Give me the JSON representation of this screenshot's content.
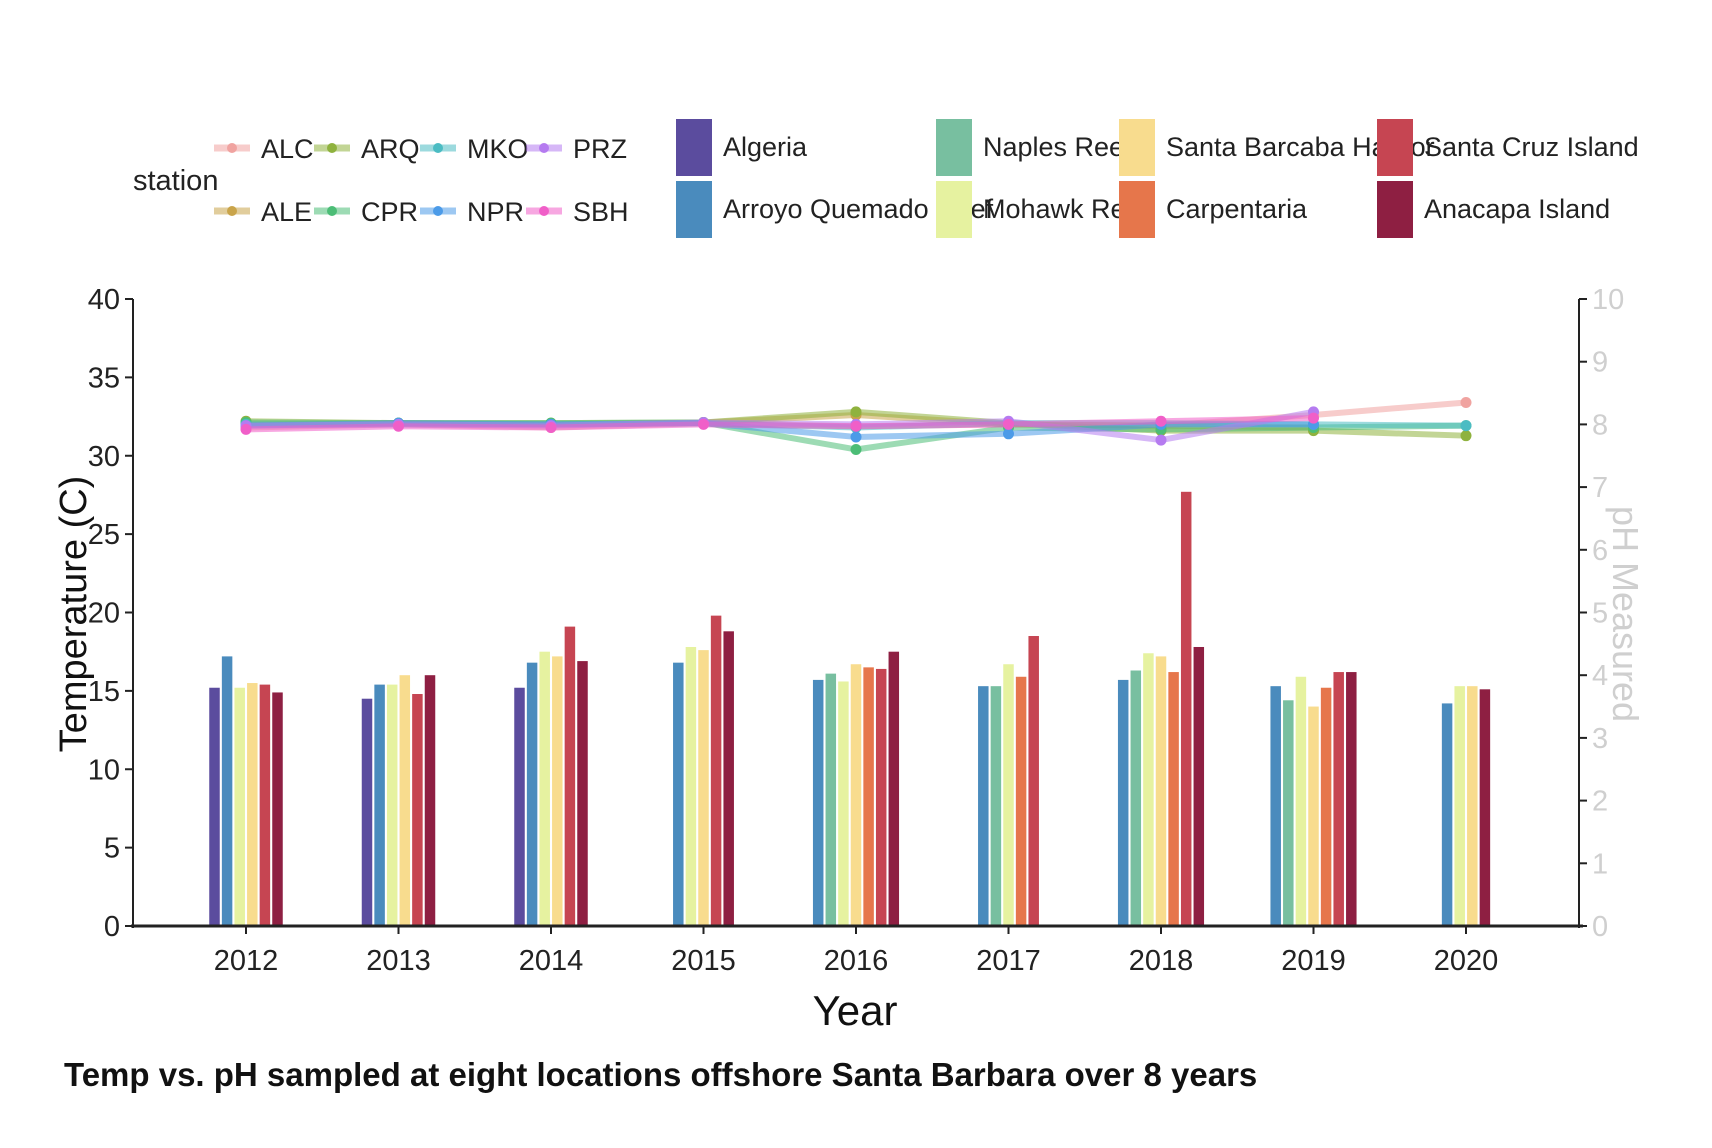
{
  "chart_data": {
    "type": "bar+line",
    "caption": "Temp vs. pH sampled at eight locations offshore Santa Barbara over 8 years",
    "xlabel": "Year",
    "ylabel_left": "Temperature (C)",
    "ylabel_right": "pH Measured",
    "ylim_left": [
      0,
      40
    ],
    "ylim_right": [
      0,
      10
    ],
    "yticks_left": [
      0,
      5,
      10,
      15,
      20,
      25,
      30,
      35,
      40
    ],
    "yticks_right": [
      0,
      1,
      2,
      3,
      4,
      5,
      6,
      7,
      8,
      9,
      10
    ],
    "grid": false,
    "legend_position": "top",
    "categories": [
      "2012",
      "2013",
      "2014",
      "2015",
      "2016",
      "2017",
      "2018",
      "2019",
      "2020"
    ],
    "bar_series": [
      {
        "name": "Algeria",
        "color": "#5b4c9e",
        "values": [
          15.2,
          14.5,
          15.2,
          null,
          null,
          null,
          null,
          null,
          null
        ]
      },
      {
        "name": "Arroyo Quemado Reef",
        "color": "#4a8bbd",
        "values": [
          17.2,
          15.4,
          16.8,
          16.8,
          15.7,
          15.3,
          15.7,
          15.3,
          14.2
        ]
      },
      {
        "name": "Naples Reef",
        "color": "#78bfa0",
        "values": [
          null,
          null,
          null,
          null,
          16.1,
          15.3,
          16.3,
          14.4,
          null
        ]
      },
      {
        "name": "Mohawk Reef",
        "color": "#e6f2a0",
        "values": [
          15.2,
          15.4,
          17.5,
          17.8,
          15.6,
          16.7,
          17.4,
          15.9,
          15.3
        ]
      },
      {
        "name": "Santa Barcaba Harbor",
        "color": "#f8dc8e",
        "values": [
          15.5,
          16.0,
          17.2,
          17.6,
          16.7,
          null,
          17.2,
          14.0,
          15.3
        ]
      },
      {
        "name": "Carpentaria",
        "color": "#e6764b",
        "values": [
          null,
          null,
          null,
          null,
          16.5,
          15.9,
          16.2,
          15.2,
          null
        ]
      },
      {
        "name": "Santa Cruz Island",
        "color": "#c64552",
        "values": [
          15.4,
          14.8,
          19.1,
          19.8,
          16.4,
          18.5,
          27.7,
          16.2,
          null
        ]
      },
      {
        "name": "Anacapa Island",
        "color": "#8e1f42",
        "values": [
          14.9,
          16.0,
          16.9,
          18.8,
          17.5,
          null,
          17.8,
          16.2,
          15.1
        ]
      }
    ],
    "line_legend_title": "station",
    "line_series": [
      {
        "name": "ALC",
        "color": "#f0a3a0",
        "values": [
          7.95,
          8.0,
          7.95,
          8.02,
          7.97,
          8.0,
          7.98,
          8.15,
          8.35
        ]
      },
      {
        "name": "ALE",
        "color": "#c9a44a",
        "values": [
          8.0,
          8.02,
          8.0,
          8.03,
          8.15,
          8.0,
          7.98,
          7.95,
          null
        ]
      },
      {
        "name": "ARQ",
        "color": "#8fb23e",
        "values": [
          8.05,
          8.02,
          8.02,
          8.03,
          8.2,
          8.02,
          7.9,
          7.9,
          7.82
        ]
      },
      {
        "name": "CPR",
        "color": "#4cbd76",
        "values": [
          8.03,
          8.02,
          8.02,
          8.03,
          7.6,
          7.95,
          7.92,
          7.95,
          7.98
        ]
      },
      {
        "name": "MKO",
        "color": "#4bbcc3",
        "values": [
          8.0,
          8.0,
          8.0,
          8.02,
          7.95,
          8.02,
          8.02,
          8.0,
          7.98
        ]
      },
      {
        "name": "NPR",
        "color": "#4c9be8",
        "values": [
          7.98,
          8.02,
          8.0,
          8.02,
          7.8,
          7.85,
          8.0,
          8.0,
          null
        ]
      },
      {
        "name": "PRZ",
        "color": "#b57bf0",
        "values": [
          7.98,
          8.0,
          7.98,
          8.03,
          8.0,
          8.05,
          7.75,
          8.2,
          null
        ]
      },
      {
        "name": "SBH",
        "color": "#f05fc8",
        "values": [
          7.92,
          7.97,
          7.95,
          8.0,
          7.97,
          8.0,
          8.05,
          8.1,
          null
        ]
      }
    ]
  }
}
